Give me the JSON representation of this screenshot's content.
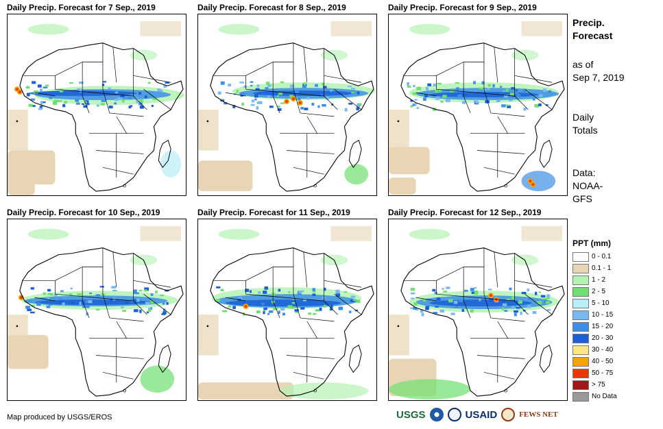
{
  "panels": [
    {
      "title": "Daily Precip. Forecast for 7 Sep., 2019"
    },
    {
      "title": "Daily Precip. Forecast for 8 Sep., 2019"
    },
    {
      "title": "Daily Precip. Forecast for 9 Sep., 2019"
    },
    {
      "title": "Daily Precip. Forecast for 10 Sep., 2019"
    },
    {
      "title": "Daily Precip. Forecast for 11 Sep., 2019"
    },
    {
      "title": "Daily Precip. Forecast for 12 Sep., 2019"
    }
  ],
  "side": {
    "title_line1": "Precip.",
    "title_line2": "Forecast",
    "asof_line1": "as of",
    "asof_line2": "Sep 7, 2019",
    "totals_line1": "Daily",
    "totals_line2": "Totals",
    "data_line1": "Data:",
    "data_line2": "NOAA-",
    "data_line3": "GFS"
  },
  "legend": {
    "title": "PPT (mm)",
    "items": [
      {
        "label": "0 - 0.1",
        "color": "#ffffff"
      },
      {
        "label": "0.1 - 1",
        "color": "#e8d5b5"
      },
      {
        "label": "1 - 2",
        "color": "#b3f2b3"
      },
      {
        "label": "2 - 5",
        "color": "#6fe06f"
      },
      {
        "label": "5 - 10",
        "color": "#b8eef5"
      },
      {
        "label": "10 - 15",
        "color": "#7ab8f0"
      },
      {
        "label": "15 - 20",
        "color": "#3d8ee6"
      },
      {
        "label": "20 - 30",
        "color": "#1a5fd6"
      },
      {
        "label": "30 - 40",
        "color": "#ffe680"
      },
      {
        "label": "40 - 50",
        "color": "#f5a300"
      },
      {
        "label": "50 - 75",
        "color": "#e83a00"
      },
      {
        "label": "> 75",
        "color": "#a01818"
      },
      {
        "label": "No Data",
        "color": "#999999"
      }
    ]
  },
  "footer": {
    "credit": "Map produced by USGS/EROS"
  },
  "logos": {
    "usgs": "USGS",
    "usaid": "USAID",
    "fews": "FEWS NET"
  }
}
